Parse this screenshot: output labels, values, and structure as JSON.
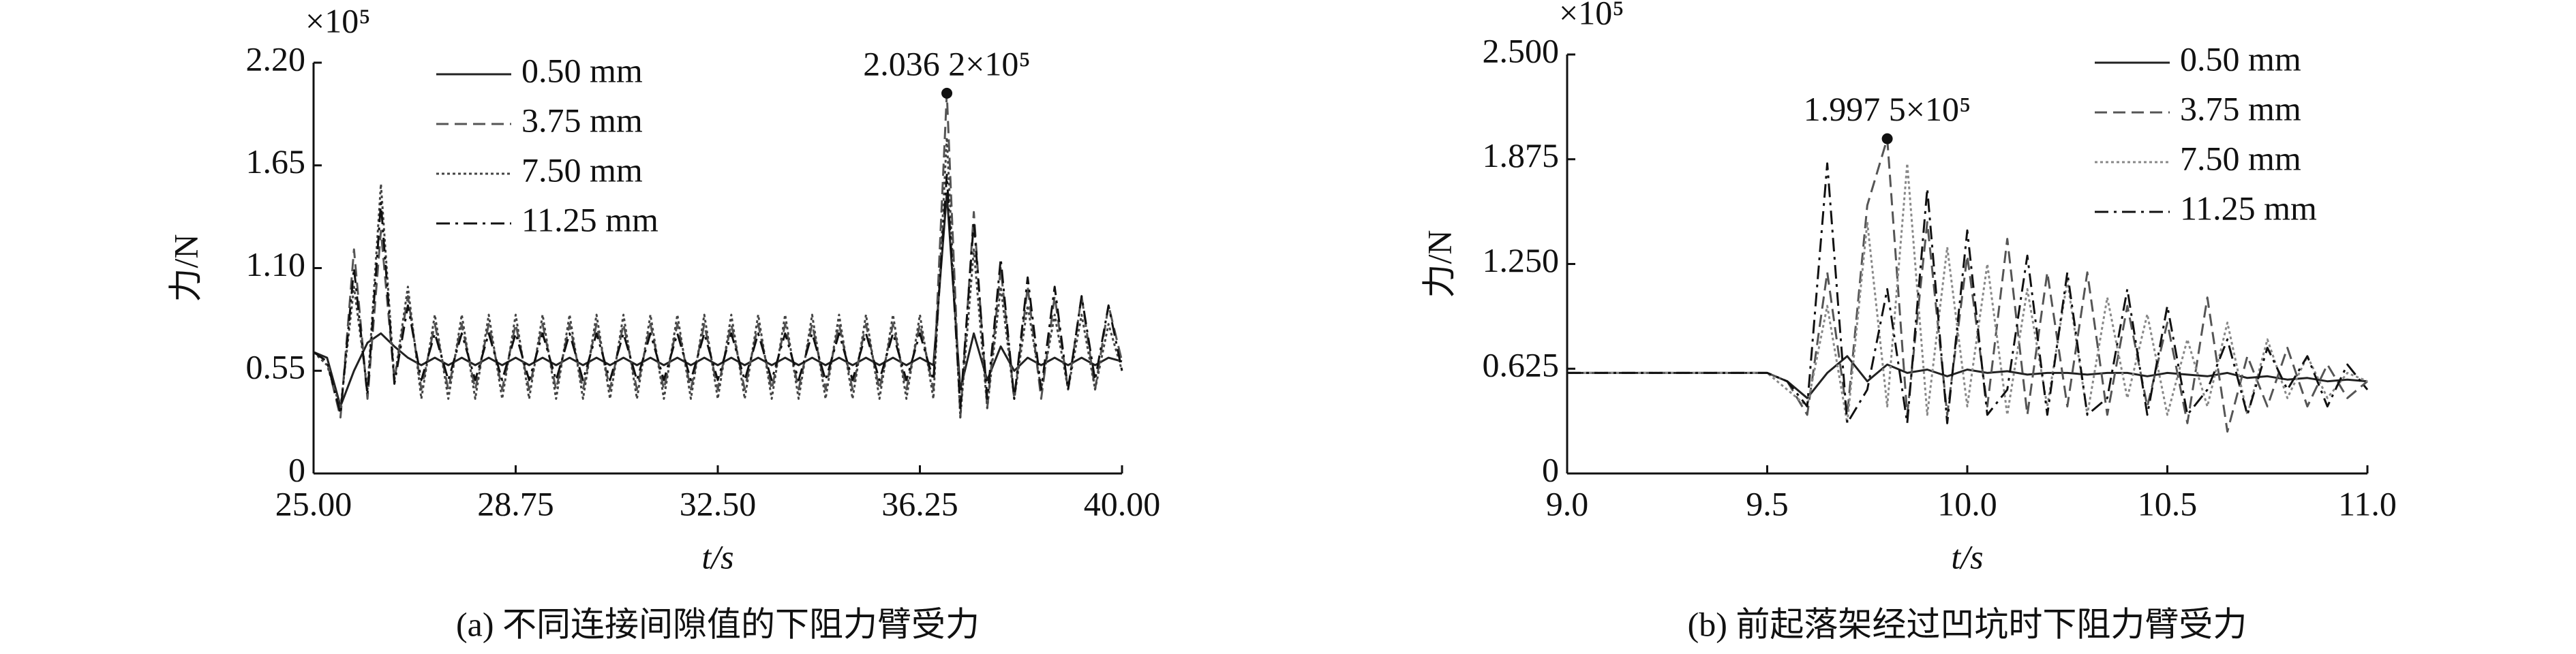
{
  "chart_data": [
    {
      "type": "line",
      "caption": "(a) 不同连接间隙值的下阻力臂受力",
      "x_label": "t/s",
      "y_label": "力/N",
      "y_scale_label": "×10⁵",
      "xlim": [
        25,
        40
      ],
      "ylim": [
        0,
        2.2
      ],
      "xticks": [
        {
          "value": 25,
          "label": "25.00"
        },
        28.75,
        {
          "value": 32.5,
          "label": "32.50"
        },
        36.25,
        {
          "value": 40,
          "label": "40.00"
        }
      ],
      "yticks": [
        0,
        0.55,
        {
          "value": 1.1,
          "label": "1.10"
        },
        1.65,
        {
          "value": 2.2,
          "label": "2.20"
        }
      ],
      "annotations": [
        {
          "text": "2.036 2×10⁵",
          "x": 36.75,
          "y": 2.0362
        }
      ],
      "x": [
        25,
        25.25,
        25.5,
        25.75,
        26,
        26.25,
        26.5,
        26.75,
        27,
        27.25,
        27.5,
        27.75,
        28,
        28.25,
        28.5,
        28.75,
        29,
        29.25,
        29.5,
        29.75,
        30,
        30.25,
        30.5,
        30.75,
        31,
        31.25,
        31.5,
        31.75,
        32,
        32.25,
        32.5,
        32.75,
        33,
        33.25,
        33.5,
        33.75,
        34,
        34.25,
        34.5,
        34.75,
        35,
        35.25,
        35.5,
        35.75,
        36,
        36.25,
        36.5,
        36.75,
        37,
        37.25,
        37.5,
        37.75,
        38,
        38.25,
        38.5,
        38.75,
        39,
        39.25,
        39.5,
        39.75,
        40
      ],
      "series": [
        {
          "name": "0.50 mm",
          "color": "#222222",
          "dash": "none",
          "values": [
            0.65,
            0.62,
            0.36,
            0.55,
            0.7,
            0.75,
            0.68,
            0.62,
            0.58,
            0.62,
            0.58,
            0.62,
            0.58,
            0.62,
            0.58,
            0.62,
            0.58,
            0.62,
            0.58,
            0.62,
            0.58,
            0.62,
            0.58,
            0.62,
            0.58,
            0.62,
            0.58,
            0.62,
            0.58,
            0.62,
            0.58,
            0.62,
            0.58,
            0.62,
            0.58,
            0.62,
            0.58,
            0.62,
            0.58,
            0.62,
            0.58,
            0.62,
            0.58,
            0.62,
            0.58,
            0.62,
            0.58,
            1.5,
            0.45,
            0.75,
            0.5,
            0.68,
            0.55,
            0.62,
            0.58,
            0.62,
            0.58,
            0.62,
            0.58,
            0.62,
            0.6
          ]
        },
        {
          "name": "3.75 mm",
          "color": "#555555",
          "dash": "18,9",
          "values": [
            0.65,
            0.6,
            0.3,
            1.2,
            0.4,
            1.3,
            0.5,
            0.95,
            0.45,
            0.8,
            0.45,
            0.8,
            0.45,
            0.8,
            0.45,
            0.8,
            0.45,
            0.8,
            0.45,
            0.8,
            0.45,
            0.8,
            0.45,
            0.8,
            0.45,
            0.8,
            0.45,
            0.8,
            0.45,
            0.8,
            0.45,
            0.8,
            0.45,
            0.8,
            0.45,
            0.8,
            0.45,
            0.8,
            0.45,
            0.8,
            0.45,
            0.8,
            0.45,
            0.8,
            0.45,
            0.8,
            0.45,
            2.0362,
            0.3,
            1.4,
            0.35,
            1.1,
            0.4,
            1.0,
            0.4,
            0.95,
            0.45,
            0.95,
            0.45,
            0.9,
            0.6
          ]
        },
        {
          "name": "7.50 mm",
          "color": "#444444",
          "dash": "4,4",
          "values": [
            0.65,
            0.58,
            0.35,
            1.0,
            0.45,
            1.55,
            0.5,
            1.0,
            0.4,
            0.85,
            0.4,
            0.85,
            0.4,
            0.85,
            0.4,
            0.85,
            0.4,
            0.85,
            0.4,
            0.85,
            0.4,
            0.85,
            0.4,
            0.85,
            0.4,
            0.85,
            0.4,
            0.85,
            0.4,
            0.85,
            0.4,
            0.85,
            0.4,
            0.85,
            0.4,
            0.85,
            0.4,
            0.85,
            0.4,
            0.85,
            0.4,
            0.85,
            0.4,
            0.85,
            0.4,
            0.85,
            0.4,
            1.8,
            0.3,
            1.2,
            0.35,
            1.0,
            0.4,
            0.9,
            0.45,
            0.85,
            0.45,
            0.85,
            0.45,
            0.8,
            0.55
          ]
        },
        {
          "name": "11.25 mm",
          "color": "#111111",
          "dash": "20,8,4,8",
          "values": [
            0.65,
            0.6,
            0.32,
            1.1,
            0.42,
            1.45,
            0.48,
            0.9,
            0.5,
            0.75,
            0.5,
            0.75,
            0.5,
            0.75,
            0.5,
            0.75,
            0.5,
            0.75,
            0.5,
            0.75,
            0.5,
            0.75,
            0.5,
            0.75,
            0.5,
            0.75,
            0.5,
            0.75,
            0.5,
            0.75,
            0.5,
            0.75,
            0.5,
            0.75,
            0.5,
            0.75,
            0.5,
            0.75,
            0.5,
            0.75,
            0.5,
            0.75,
            0.5,
            0.75,
            0.5,
            0.75,
            0.5,
            1.6,
            0.35,
            1.35,
            0.4,
            1.15,
            0.4,
            1.05,
            0.45,
            1.0,
            0.45,
            0.95,
            0.5,
            0.9,
            0.55
          ]
        }
      ]
    },
    {
      "type": "line",
      "caption": "(b) 前起落架经过凹坑时下阻力臂受力",
      "x_label": "t/s",
      "y_label": "力/N",
      "y_scale_label": "×10⁵",
      "xlim": [
        9,
        11
      ],
      "ylim": [
        0,
        2.5
      ],
      "xticks": [
        {
          "value": 9,
          "label": "9.0"
        },
        9.5,
        {
          "value": 10,
          "label": "10.0"
        },
        10.5,
        {
          "value": 11,
          "label": "11.0"
        }
      ],
      "yticks": [
        0,
        0.625,
        {
          "value": 1.25,
          "label": "1.250"
        },
        1.875,
        {
          "value": 2.5,
          "label": "2.500"
        }
      ],
      "annotations": [
        {
          "text": "1.997 5×10⁵",
          "x": 9.8,
          "y": 1.9975
        }
      ],
      "x": [
        9,
        9.05,
        9.1,
        9.15,
        9.2,
        9.25,
        9.3,
        9.35,
        9.4,
        9.45,
        9.5,
        9.55,
        9.6,
        9.65,
        9.7,
        9.75,
        9.8,
        9.85,
        9.9,
        9.95,
        10,
        10.05,
        10.1,
        10.15,
        10.2,
        10.25,
        10.3,
        10.35,
        10.4,
        10.45,
        10.5,
        10.55,
        10.6,
        10.65,
        10.7,
        10.75,
        10.8,
        10.85,
        10.9,
        10.95,
        11
      ],
      "series": [
        {
          "name": "0.50 mm",
          "color": "#222222",
          "dash": "none",
          "values": [
            0.6,
            0.6,
            0.6,
            0.6,
            0.6,
            0.6,
            0.6,
            0.6,
            0.6,
            0.6,
            0.6,
            0.55,
            0.45,
            0.6,
            0.7,
            0.55,
            0.65,
            0.6,
            0.62,
            0.58,
            0.62,
            0.6,
            0.61,
            0.59,
            0.6,
            0.6,
            0.59,
            0.6,
            0.6,
            0.58,
            0.6,
            0.59,
            0.58,
            0.6,
            0.57,
            0.58,
            0.56,
            0.57,
            0.55,
            0.56,
            0.55
          ]
        },
        {
          "name": "3.75 mm",
          "color": "#555555",
          "dash": "18,9",
          "values": [
            0.6,
            0.6,
            0.6,
            0.6,
            0.6,
            0.6,
            0.6,
            0.6,
            0.6,
            0.6,
            0.6,
            0.55,
            0.35,
            1.2,
            0.35,
            1.6,
            1.9975,
            0.35,
            1.5,
            0.35,
            1.3,
            0.4,
            1.4,
            0.35,
            1.2,
            0.4,
            1.2,
            0.35,
            1.0,
            0.4,
            0.9,
            0.3,
            1.05,
            0.25,
            0.7,
            0.4,
            0.75,
            0.4,
            0.65,
            0.45,
            0.55
          ]
        },
        {
          "name": "7.50 mm",
          "color": "#888888",
          "dash": "4,4",
          "values": [
            0.6,
            0.6,
            0.6,
            0.6,
            0.6,
            0.6,
            0.6,
            0.6,
            0.6,
            0.6,
            0.6,
            0.5,
            0.4,
            1.0,
            0.3,
            1.5,
            0.4,
            1.85,
            0.35,
            1.35,
            0.4,
            1.25,
            0.35,
            1.1,
            0.4,
            1.15,
            0.35,
            1.05,
            0.45,
            0.95,
            0.35,
            0.8,
            0.4,
            0.9,
            0.35,
            0.8,
            0.45,
            0.7,
            0.45,
            0.6,
            0.55
          ]
        },
        {
          "name": "11.25 mm",
          "color": "#111111",
          "dash": "20,8,4,8",
          "values": [
            0.6,
            0.6,
            0.6,
            0.6,
            0.6,
            0.6,
            0.6,
            0.6,
            0.6,
            0.6,
            0.6,
            0.55,
            0.4,
            1.85,
            0.3,
            0.5,
            1.1,
            0.3,
            1.7,
            0.3,
            1.45,
            0.35,
            0.5,
            1.3,
            0.35,
            1.2,
            0.35,
            0.45,
            1.1,
            0.35,
            1.0,
            0.35,
            0.5,
            0.8,
            0.35,
            0.75,
            0.5,
            0.7,
            0.4,
            0.65,
            0.5
          ]
        }
      ]
    }
  ]
}
